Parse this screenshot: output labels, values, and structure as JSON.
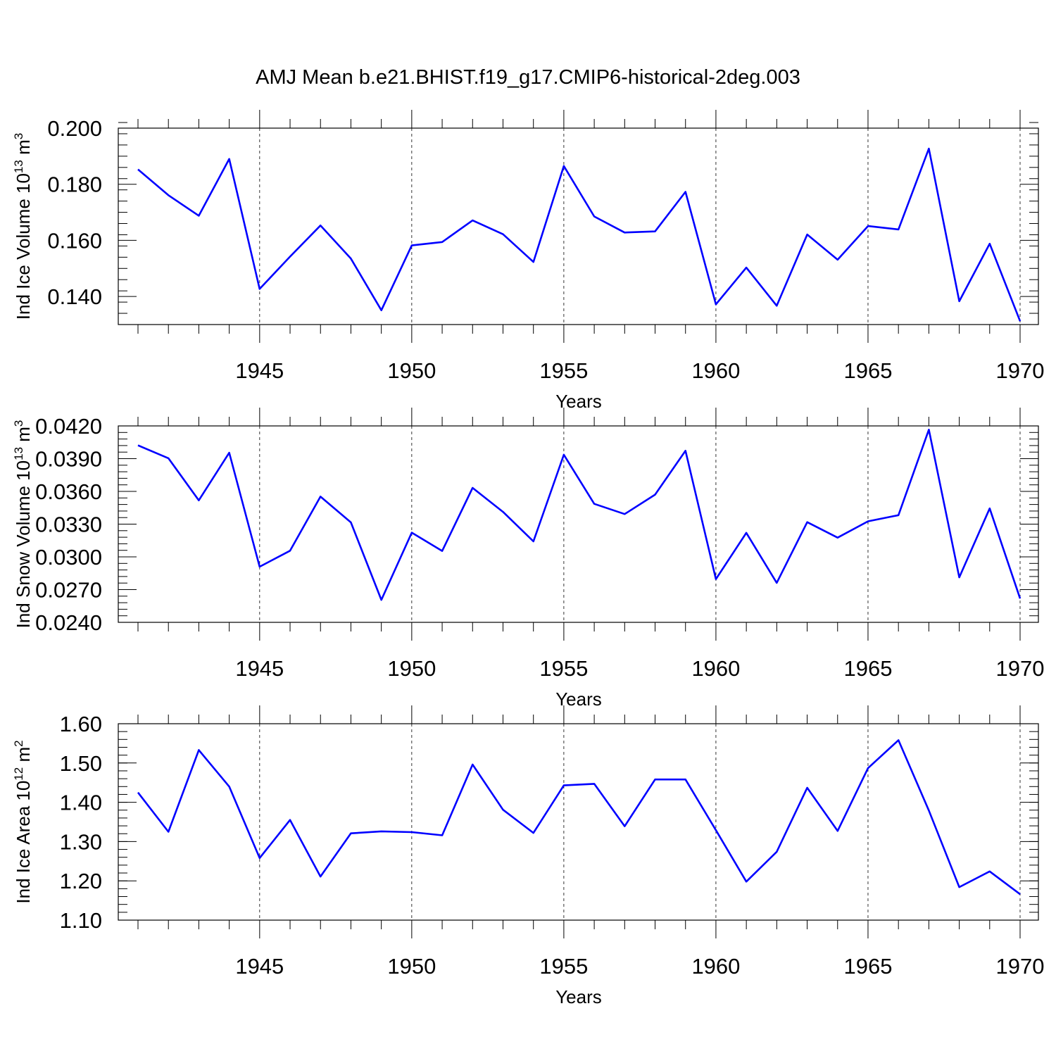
{
  "title": "AMJ Mean b.e21.BHIST.f19_g17.CMIP6-historical-2deg.003",
  "line_color": "#0000ff",
  "chart_data": [
    {
      "type": "line",
      "xlabel": "Years",
      "ylabel": "Ind Ice Volume 10",
      "ylabel_sup": "13",
      "ylabel_unit": " m",
      "ylabel_unit_sup": "3",
      "ylim": [
        0.13,
        0.2
      ],
      "xlim": [
        1941,
        1970
      ],
      "yticks": [
        0.14,
        0.16,
        0.18,
        0.2
      ],
      "ytick_labels": [
        "0.140",
        "0.160",
        "0.180",
        "0.200"
      ],
      "yminor_step": 0.004,
      "xticks": [
        1945,
        1950,
        1955,
        1960,
        1965,
        1970
      ],
      "xtick_labels": [
        "1945",
        "1950",
        "1955",
        "1960",
        "1965",
        "1970"
      ],
      "grid_x": true,
      "x": [
        1941,
        1942,
        1943,
        1944,
        1945,
        1946,
        1947,
        1948,
        1949,
        1950,
        1951,
        1952,
        1953,
        1954,
        1955,
        1956,
        1957,
        1958,
        1959,
        1960,
        1961,
        1962,
        1963,
        1964,
        1965,
        1966,
        1967,
        1968,
        1969,
        1970
      ],
      "y": [
        0.1853,
        0.1761,
        0.1688,
        0.189,
        0.1427,
        0.1542,
        0.1653,
        0.1535,
        0.1351,
        0.1582,
        0.1594,
        0.1671,
        0.1622,
        0.1523,
        0.1865,
        0.1685,
        0.1628,
        0.1632,
        0.1773,
        0.1372,
        0.1503,
        0.1367,
        0.1621,
        0.1531,
        0.1651,
        0.1639,
        0.1927,
        0.1383,
        0.1588,
        0.1312
      ]
    },
    {
      "type": "line",
      "xlabel": "Years",
      "ylabel": "Ind Snow Volume 10",
      "ylabel_sup": "13",
      "ylabel_unit": " m",
      "ylabel_unit_sup": "3",
      "ylim": [
        0.024,
        0.042
      ],
      "xlim": [
        1941,
        1970
      ],
      "yticks": [
        0.024,
        0.027,
        0.03,
        0.033,
        0.036,
        0.039,
        0.042
      ],
      "ytick_labels": [
        "0.0240",
        "0.0270",
        "0.0300",
        "0.0330",
        "0.0360",
        "0.0390",
        "0.0420"
      ],
      "yminor_step": 0.0006,
      "xticks": [
        1945,
        1950,
        1955,
        1960,
        1965,
        1970
      ],
      "xtick_labels": [
        "1945",
        "1950",
        "1955",
        "1960",
        "1965",
        "1970"
      ],
      "grid_x": true,
      "x": [
        1941,
        1942,
        1943,
        1944,
        1945,
        1946,
        1947,
        1948,
        1949,
        1950,
        1951,
        1952,
        1953,
        1954,
        1955,
        1956,
        1957,
        1958,
        1959,
        1960,
        1961,
        1962,
        1963,
        1964,
        1965,
        1966,
        1967,
        1968,
        1969,
        1970
      ],
      "y": [
        0.04022,
        0.03904,
        0.03518,
        0.03954,
        0.0291,
        0.03056,
        0.03552,
        0.03316,
        0.02606,
        0.03222,
        0.03054,
        0.03632,
        0.03412,
        0.03142,
        0.03936,
        0.03486,
        0.03392,
        0.0357,
        0.03972,
        0.02796,
        0.0322,
        0.02762,
        0.03318,
        0.03176,
        0.03326,
        0.03382,
        0.04166,
        0.02812,
        0.03444,
        0.02618
      ]
    },
    {
      "type": "line",
      "xlabel": "Years",
      "ylabel": "Ind Ice Area 10",
      "ylabel_sup": "12",
      "ylabel_unit": " m",
      "ylabel_unit_sup": "2",
      "ylim": [
        1.1,
        1.6
      ],
      "xlim": [
        1941,
        1970
      ],
      "yticks": [
        1.1,
        1.2,
        1.3,
        1.4,
        1.5,
        1.6
      ],
      "ytick_labels": [
        "1.10",
        "1.20",
        "1.30",
        "1.40",
        "1.50",
        "1.60"
      ],
      "yminor_step": 0.02,
      "xticks": [
        1945,
        1950,
        1955,
        1960,
        1965,
        1970
      ],
      "xtick_labels": [
        "1945",
        "1950",
        "1955",
        "1960",
        "1965",
        "1970"
      ],
      "grid_x": true,
      "x": [
        1941,
        1942,
        1943,
        1944,
        1945,
        1946,
        1947,
        1948,
        1949,
        1950,
        1951,
        1952,
        1953,
        1954,
        1955,
        1956,
        1957,
        1958,
        1959,
        1960,
        1961,
        1962,
        1963,
        1964,
        1965,
        1966,
        1967,
        1968,
        1969,
        1970
      ],
      "y": [
        1.425,
        1.325,
        1.533,
        1.44,
        1.258,
        1.355,
        1.211,
        1.321,
        1.326,
        1.324,
        1.316,
        1.496,
        1.381,
        1.322,
        1.443,
        1.447,
        1.339,
        1.458,
        1.458,
        1.329,
        1.198,
        1.274,
        1.437,
        1.327,
        1.487,
        1.558,
        1.379,
        1.184,
        1.224,
        1.166
      ]
    }
  ]
}
